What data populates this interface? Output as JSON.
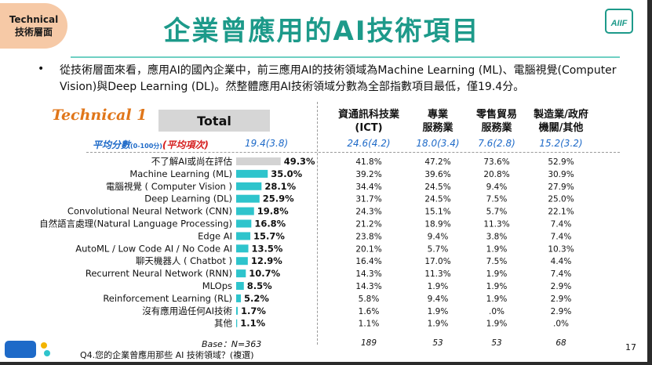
{
  "badge": {
    "line1": "Technical",
    "line2": "技術層面"
  },
  "title": "企業曾應用的AI技術項目",
  "logo_text": "AIIF",
  "description": "從技術層面來看，應用AI的國內企業中，前三應用AI的技術領域為Machine Learning (ML)、電腦視覺(Computer Vision)與Deep Learning (DL)。然整體應用AI技術領域分數為全部指數項目最低，僅19.4分。",
  "section_label": "Technical 1",
  "total_header": "Total",
  "columns": [
    {
      "line1": "資通訊科技業",
      "line2": "(ICT)"
    },
    {
      "line1": "專業",
      "line2": "服務業"
    },
    {
      "line1": "零售貿易",
      "line2": "服務業"
    },
    {
      "line1": "製造業/政府",
      "line2": "機關/其他"
    }
  ],
  "avg_row": {
    "label": "平均分數",
    "label_small": "(0-100分)",
    "label_red": "(平均項次)",
    "total": "19.4(3.8)",
    "values": [
      "24.6(4.2)",
      "18.0(3.4)",
      "7.6(2.8)",
      "15.2(3.2)"
    ]
  },
  "chart_data": {
    "type": "bar",
    "orientation": "horizontal",
    "categories": [
      "不了解AI或尚在評估",
      "Machine Learning (ML)",
      "電腦視覺 ( Computer Vision )",
      "Deep Learning (DL)",
      "Convolutional Neural Network (CNN)",
      "自然語言處理(Natural Language Processing)",
      "Edge AI",
      "AutoML / Low Code AI / No Code AI",
      "聊天機器人 ( Chatbot )",
      "Recurrent Neural Network (RNN)",
      "MLOps",
      "Reinforcement Learning (RL)",
      "沒有應用過任何AI技術",
      "其他"
    ],
    "values": [
      49.3,
      35.0,
      28.1,
      25.9,
      19.8,
      16.8,
      15.7,
      13.5,
      12.9,
      10.7,
      8.5,
      5.2,
      1.7,
      1.1
    ],
    "value_labels": [
      "49.3%",
      "35.0%",
      "28.1%",
      "25.9%",
      "19.8%",
      "16.8%",
      "15.7%",
      "13.5%",
      "12.9%",
      "10.7%",
      "8.5%",
      "5.2%",
      "1.7%",
      "1.1%"
    ],
    "bar_colors": [
      "#d3d3d3",
      "#2ec4cc",
      "#2ec4cc",
      "#2ec4cc",
      "#2ec4cc",
      "#2ec4cc",
      "#2ec4cc",
      "#2ec4cc",
      "#2ec4cc",
      "#2ec4cc",
      "#2ec4cc",
      "#2ec4cc",
      "#2ec4cc",
      "#2ec4cc"
    ],
    "xlim": [
      0,
      100
    ],
    "table": {
      "rows": [
        [
          "41.8%",
          "47.2%",
          "73.6%",
          "52.9%"
        ],
        [
          "39.2%",
          "39.6%",
          "20.8%",
          "30.9%"
        ],
        [
          "34.4%",
          "24.5%",
          "9.4%",
          "27.9%"
        ],
        [
          "31.7%",
          "24.5%",
          "7.5%",
          "25.0%"
        ],
        [
          "24.3%",
          "15.1%",
          "5.7%",
          "22.1%"
        ],
        [
          "21.2%",
          "18.9%",
          "11.3%",
          "7.4%"
        ],
        [
          "23.8%",
          "9.4%",
          "3.8%",
          "7.4%"
        ],
        [
          "20.1%",
          "5.7%",
          "1.9%",
          "10.3%"
        ],
        [
          "16.4%",
          "17.0%",
          "7.5%",
          "4.4%"
        ],
        [
          "14.3%",
          "11.3%",
          "1.9%",
          "7.4%"
        ],
        [
          "14.3%",
          "1.9%",
          "1.9%",
          "2.9%"
        ],
        [
          "5.8%",
          "9.4%",
          "1.9%",
          "2.9%"
        ],
        [
          "1.6%",
          "1.9%",
          ".0%",
          "2.9%"
        ],
        [
          "1.1%",
          "1.9%",
          "1.9%",
          ".0%"
        ]
      ],
      "base": [
        "189",
        "53",
        "53",
        "68"
      ]
    }
  },
  "base_note": "Base：N=363",
  "question": "Q4.您的企業曾應用那些 AI 技術領域？(複選)",
  "page_number": "17",
  "colors": {
    "title": "#1d9a8a",
    "bar": "#2ec4cc",
    "avg": "#1e6ac8",
    "accent": "#e0761a"
  }
}
